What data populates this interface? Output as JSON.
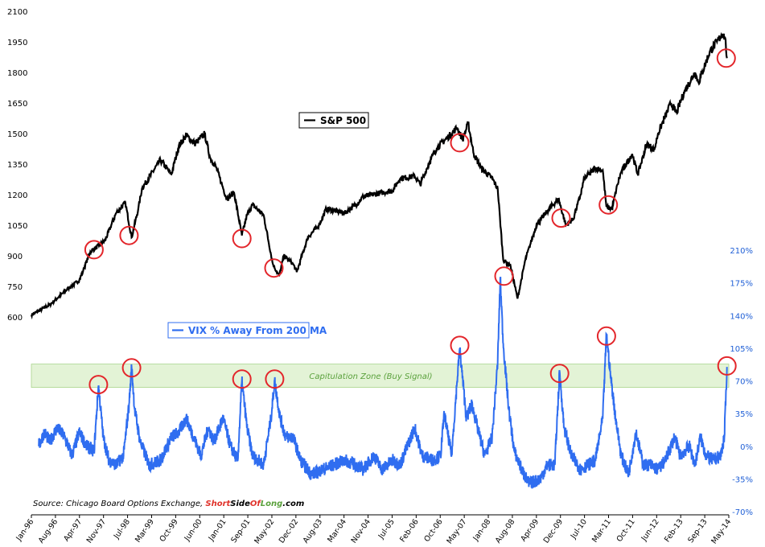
{
  "chart_data": {
    "type": "line",
    "x_ticks": [
      "Jan-96",
      "Aug-96",
      "Apr-97",
      "Nov-97",
      "Jul-98",
      "Mar-99",
      "Oct-99",
      "Jun-00",
      "Jan-01",
      "Sep-01",
      "May-02",
      "Dec-02",
      "Aug-03",
      "Mar-04",
      "Nov-04",
      "Jul-05",
      "Feb-06",
      "Oct-06",
      "May-07",
      "Jan-08",
      "Aug-08",
      "Apr-09",
      "Dec-09",
      "Jul-10",
      "Mar-11",
      "Oct-11",
      "Jun-12",
      "Feb-13",
      "Sep-13",
      "May-14"
    ],
    "left_axis": {
      "ticks": [
        "600",
        "750",
        "900",
        "1050",
        "1200",
        "1350",
        "1500",
        "1650",
        "1800",
        "1950",
        "2100"
      ],
      "range": [
        600,
        2100
      ]
    },
    "right_axis": {
      "ticks": [
        "210%",
        "175%",
        "140%",
        "105%",
        "70%",
        "35%",
        "0%",
        "-35%",
        "-70%"
      ],
      "range": [
        -70,
        210
      ],
      "unit": "%"
    },
    "capitulation_zone": {
      "label": "Capitulation Zone (Buy Signal)",
      "range": [
        63,
        88
      ]
    },
    "source_prefix": "Source: Chicago Board Options Exchange, ",
    "brand_short": "Short",
    "brand_side": "Side",
    "brand_of": "Of",
    "brand_long": "Long",
    "brand_com": ".com",
    "series": [
      {
        "name": "S&P 500",
        "color": "#000000",
        "axis": "left",
        "points": [
          [
            1996.0,
            610
          ],
          [
            1996.5,
            660
          ],
          [
            1997.0,
            740
          ],
          [
            1997.3,
            780
          ],
          [
            1997.6,
            920
          ],
          [
            1997.83,
            950
          ],
          [
            1998.0,
            975
          ],
          [
            1998.3,
            1110
          ],
          [
            1998.55,
            1160
          ],
          [
            1998.72,
            990
          ],
          [
            1998.9,
            1130
          ],
          [
            1999.0,
            1230
          ],
          [
            1999.5,
            1370
          ],
          [
            1999.8,
            1300
          ],
          [
            2000.0,
            1440
          ],
          [
            2000.2,
            1490
          ],
          [
            2000.45,
            1450
          ],
          [
            2000.7,
            1500
          ],
          [
            2000.85,
            1380
          ],
          [
            2001.0,
            1340
          ],
          [
            2001.3,
            1180
          ],
          [
            2001.5,
            1210
          ],
          [
            2001.71,
            1000
          ],
          [
            2001.85,
            1100
          ],
          [
            2002.0,
            1150
          ],
          [
            2002.3,
            1100
          ],
          [
            2002.55,
            860
          ],
          [
            2002.72,
            800
          ],
          [
            2002.85,
            900
          ],
          [
            2003.1,
            860
          ],
          [
            2003.2,
            820
          ],
          [
            2003.5,
            990
          ],
          [
            2003.8,
            1050
          ],
          [
            2004.0,
            1130
          ],
          [
            2004.5,
            1110
          ],
          [
            2004.8,
            1150
          ],
          [
            2005.0,
            1190
          ],
          [
            2005.5,
            1210
          ],
          [
            2005.8,
            1220
          ],
          [
            2006.0,
            1280
          ],
          [
            2006.4,
            1290
          ],
          [
            2006.55,
            1250
          ],
          [
            2006.8,
            1360
          ],
          [
            2007.0,
            1430
          ],
          [
            2007.4,
            1500
          ],
          [
            2007.55,
            1530
          ],
          [
            2007.7,
            1470
          ],
          [
            2007.85,
            1550
          ],
          [
            2008.0,
            1400
          ],
          [
            2008.2,
            1330
          ],
          [
            2008.5,
            1280
          ],
          [
            2008.65,
            1230
          ],
          [
            2008.8,
            880
          ],
          [
            2009.0,
            850
          ],
          [
            2009.19,
            690
          ],
          [
            2009.4,
            880
          ],
          [
            2009.7,
            1050
          ],
          [
            2010.0,
            1120
          ],
          [
            2010.3,
            1180
          ],
          [
            2010.5,
            1050
          ],
          [
            2010.7,
            1080
          ],
          [
            2010.9,
            1200
          ],
          [
            2011.0,
            1280
          ],
          [
            2011.3,
            1330
          ],
          [
            2011.5,
            1320
          ],
          [
            2011.6,
            1140
          ],
          [
            2011.75,
            1130
          ],
          [
            2011.9,
            1250
          ],
          [
            2012.0,
            1310
          ],
          [
            2012.3,
            1400
          ],
          [
            2012.45,
            1300
          ],
          [
            2012.7,
            1450
          ],
          [
            2012.9,
            1420
          ],
          [
            2013.0,
            1500
          ],
          [
            2013.35,
            1650
          ],
          [
            2013.5,
            1600
          ],
          [
            2013.7,
            1700
          ],
          [
            2014.0,
            1800
          ],
          [
            2014.1,
            1750
          ],
          [
            2014.4,
            1900
          ],
          [
            2014.6,
            1950
          ],
          [
            2014.75,
            1990
          ],
          [
            2014.82,
            1970
          ],
          [
            2014.87,
            1870
          ]
        ]
      },
      {
        "name": "VIX % Away From 200 MA",
        "color": "#2f6df0",
        "axis": "right",
        "points": [
          [
            1996.2,
            0
          ],
          [
            1996.35,
            15
          ],
          [
            1996.5,
            5
          ],
          [
            1996.7,
            20
          ],
          [
            1996.9,
            10
          ],
          [
            1997.1,
            -10
          ],
          [
            1997.3,
            15
          ],
          [
            1997.5,
            0
          ],
          [
            1997.7,
            -5
          ],
          [
            1997.82,
            65
          ],
          [
            1997.95,
            10
          ],
          [
            1998.1,
            -15
          ],
          [
            1998.3,
            -20
          ],
          [
            1998.5,
            -10
          ],
          [
            1998.65,
            45
          ],
          [
            1998.72,
            85
          ],
          [
            1998.8,
            40
          ],
          [
            1998.95,
            5
          ],
          [
            1999.2,
            -20
          ],
          [
            1999.5,
            -15
          ],
          [
            1999.8,
            10
          ],
          [
            2000.0,
            15
          ],
          [
            2000.2,
            30
          ],
          [
            2000.4,
            10
          ],
          [
            2000.6,
            -10
          ],
          [
            2000.8,
            20
          ],
          [
            2000.95,
            5
          ],
          [
            2001.2,
            30
          ],
          [
            2001.4,
            0
          ],
          [
            2001.6,
            -15
          ],
          [
            2001.71,
            70
          ],
          [
            2001.85,
            20
          ],
          [
            2002.0,
            -10
          ],
          [
            2002.3,
            -20
          ],
          [
            2002.5,
            30
          ],
          [
            2002.6,
            70
          ],
          [
            2002.75,
            30
          ],
          [
            2002.9,
            10
          ],
          [
            2003.1,
            10
          ],
          [
            2003.3,
            -15
          ],
          [
            2003.6,
            -30
          ],
          [
            2003.9,
            -25
          ],
          [
            2004.2,
            -20
          ],
          [
            2004.5,
            -15
          ],
          [
            2004.8,
            -20
          ],
          [
            2005.0,
            -25
          ],
          [
            2005.3,
            -10
          ],
          [
            2005.5,
            -25
          ],
          [
            2005.8,
            -15
          ],
          [
            2006.0,
            -20
          ],
          [
            2006.4,
            20
          ],
          [
            2006.6,
            -10
          ],
          [
            2006.9,
            -15
          ],
          [
            2007.1,
            -10
          ],
          [
            2007.2,
            35
          ],
          [
            2007.4,
            -10
          ],
          [
            2007.55,
            70
          ],
          [
            2007.62,
            105
          ],
          [
            2007.8,
            30
          ],
          [
            2007.95,
            45
          ],
          [
            2008.1,
            20
          ],
          [
            2008.3,
            -10
          ],
          [
            2008.5,
            10
          ],
          [
            2008.65,
            90
          ],
          [
            2008.72,
            180
          ],
          [
            2008.8,
            110
          ],
          [
            2008.95,
            40
          ],
          [
            2009.1,
            -5
          ],
          [
            2009.3,
            -25
          ],
          [
            2009.5,
            -40
          ],
          [
            2009.8,
            -35
          ],
          [
            2010.0,
            -20
          ],
          [
            2010.2,
            -20
          ],
          [
            2010.33,
            80
          ],
          [
            2010.45,
            20
          ],
          [
            2010.65,
            -10
          ],
          [
            2010.9,
            -25
          ],
          [
            2011.1,
            -20
          ],
          [
            2011.3,
            -15
          ],
          [
            2011.5,
            30
          ],
          [
            2011.6,
            120
          ],
          [
            2011.7,
            80
          ],
          [
            2011.85,
            30
          ],
          [
            2012.0,
            -10
          ],
          [
            2012.2,
            -30
          ],
          [
            2012.4,
            15
          ],
          [
            2012.6,
            -20
          ],
          [
            2012.8,
            -20
          ],
          [
            2013.0,
            -25
          ],
          [
            2013.2,
            -15
          ],
          [
            2013.45,
            10
          ],
          [
            2013.6,
            -10
          ],
          [
            2013.85,
            0
          ],
          [
            2014.0,
            -20
          ],
          [
            2014.15,
            10
          ],
          [
            2014.3,
            -10
          ],
          [
            2014.5,
            -15
          ],
          [
            2014.7,
            -10
          ],
          [
            2014.8,
            10
          ],
          [
            2014.87,
            85
          ]
        ]
      }
    ],
    "annotations": [
      {
        "series": 0,
        "x": 1997.7,
        "y": 930
      },
      {
        "series": 0,
        "x": 1998.65,
        "y": 1000
      },
      {
        "series": 0,
        "x": 2001.71,
        "y": 985
      },
      {
        "series": 0,
        "x": 2002.58,
        "y": 840
      },
      {
        "series": 0,
        "x": 2007.62,
        "y": 1455
      },
      {
        "series": 0,
        "x": 2008.82,
        "y": 800
      },
      {
        "series": 0,
        "x": 2010.37,
        "y": 1085
      },
      {
        "series": 0,
        "x": 2011.65,
        "y": 1150
      },
      {
        "series": 0,
        "x": 2014.85,
        "y": 1870
      },
      {
        "series": 1,
        "x": 1997.82,
        "y": 66
      },
      {
        "series": 1,
        "x": 1998.72,
        "y": 84
      },
      {
        "series": 1,
        "x": 2001.71,
        "y": 72
      },
      {
        "series": 1,
        "x": 2002.6,
        "y": 72
      },
      {
        "series": 1,
        "x": 2007.62,
        "y": 108
      },
      {
        "series": 1,
        "x": 2010.33,
        "y": 78
      },
      {
        "series": 1,
        "x": 2011.6,
        "y": 118
      },
      {
        "series": 1,
        "x": 2014.87,
        "y": 86
      }
    ]
  }
}
